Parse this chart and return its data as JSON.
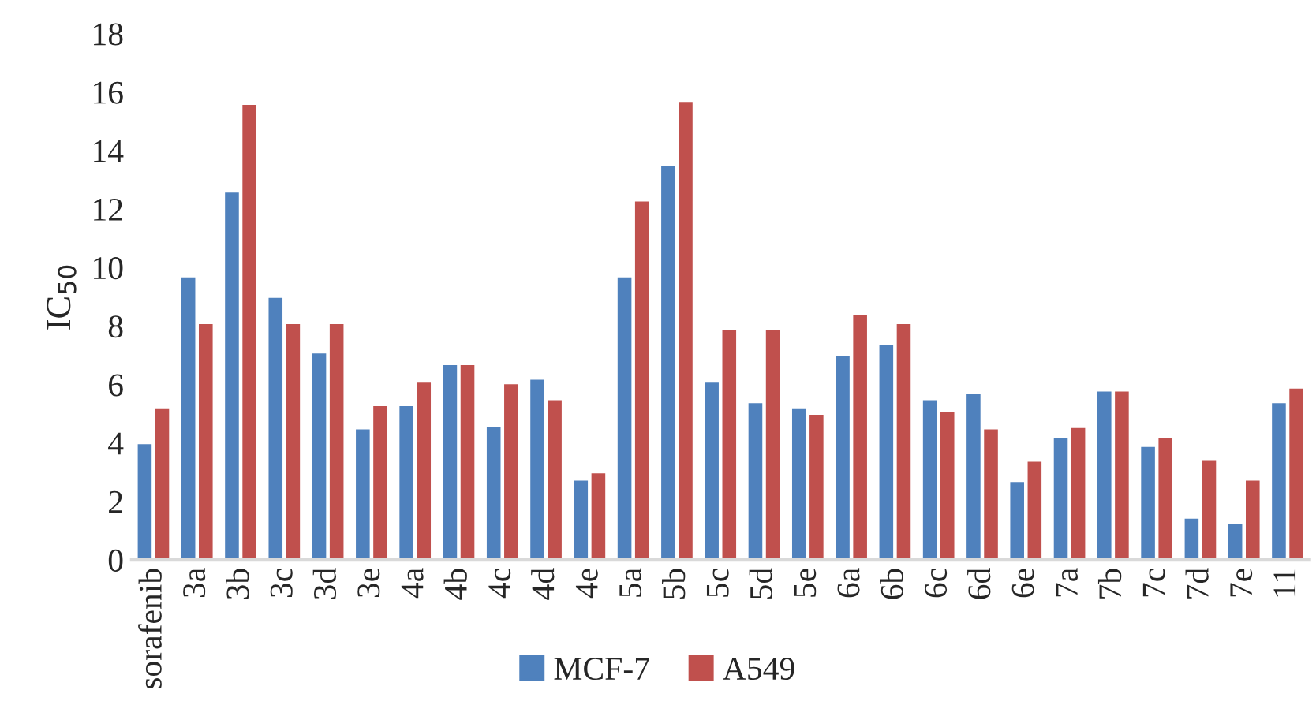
{
  "chart_data": {
    "type": "bar",
    "ylabel": "IC$_{50}$",
    "categories": [
      "sorafenib",
      "3a",
      "3b",
      "3c",
      "3d",
      "3e",
      "4a",
      "4b",
      "4c",
      "4d",
      "4e",
      "5a",
      "5b",
      "5c",
      "5d",
      "5e",
      "6a",
      "6b",
      "6c",
      "6d",
      "6e",
      "7a",
      "7b",
      "7c",
      "7d",
      "7e",
      "11"
    ],
    "series": [
      {
        "name": "MCF-7",
        "color": "#4f81bd",
        "values": [
          4.0,
          9.7,
          12.6,
          9.0,
          7.1,
          4.5,
          5.3,
          6.7,
          4.6,
          6.2,
          2.75,
          9.7,
          13.5,
          6.1,
          5.4,
          5.2,
          7.0,
          7.4,
          5.5,
          5.7,
          2.7,
          4.2,
          5.8,
          3.9,
          1.45,
          1.25,
          5.4
        ]
      },
      {
        "name": "A549",
        "color": "#c0504d",
        "values": [
          5.2,
          8.1,
          15.6,
          8.1,
          8.1,
          5.3,
          6.1,
          6.7,
          6.05,
          5.5,
          3.0,
          12.3,
          15.7,
          7.9,
          7.9,
          5.0,
          8.4,
          8.1,
          5.1,
          4.5,
          3.4,
          4.55,
          5.8,
          4.2,
          3.45,
          2.75,
          5.9
        ]
      }
    ],
    "ylim": [
      0,
      18
    ],
    "yticks": [
      0,
      2,
      4,
      6,
      8,
      10,
      12,
      14,
      16,
      18
    ],
    "grid": false,
    "legend": "bottom"
  }
}
